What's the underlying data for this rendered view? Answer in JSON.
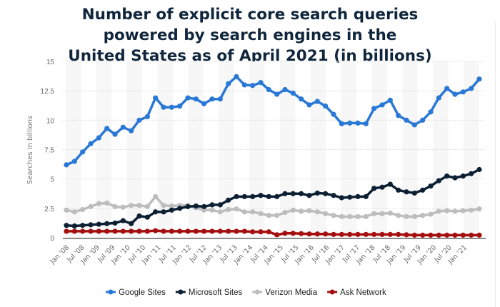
{
  "chart_data": {
    "type": "line",
    "title": "Number of explicit core search queries powered by search engines in the United States as of April 2021 (in billions)",
    "title_lines": [
      "Number of explicit core search queries",
      "powered by search engines in the",
      "United States as of April 2021 (in billions)"
    ],
    "xlabel": "",
    "ylabel": "Searches in billions",
    "ylim": [
      0,
      15
    ],
    "yticks": [
      "0",
      "2.5",
      "5",
      "7.5",
      "10",
      "12.5",
      "15"
    ],
    "ytick_values": [
      0,
      2.5,
      5,
      7.5,
      10,
      12.5,
      15
    ],
    "xtick_labels": [
      "Jan '08",
      "Jul '08",
      "Jan '09",
      "Jul '09",
      "Jan '10",
      "Jul '10",
      "Jan '11",
      "Jul '11",
      "Jan '12",
      "Jul '12",
      "Jan '13",
      "Jul '13",
      "Jan '14",
      "Jul '14",
      "Jan '15",
      "Jul '15",
      "Jan '16",
      "Jul '16",
      "Jan '17",
      "Jul '17",
      "Jan '18",
      "Jul '18",
      "Jan '19",
      "Jul '19",
      "Jan '20",
      "Jul '20",
      "Jan '21"
    ],
    "grid": true,
    "legend_position": "bottom",
    "series": [
      {
        "name": "Google Sites",
        "color": "#2a78d6",
        "values": [
          6.2,
          6.5,
          7.3,
          8.0,
          8.5,
          9.3,
          8.8,
          9.4,
          9.1,
          10.0,
          10.3,
          11.9,
          11.1,
          11.1,
          11.2,
          11.9,
          11.8,
          11.4,
          11.8,
          11.8,
          13.1,
          13.7,
          13.0,
          12.95,
          13.2,
          12.6,
          12.2,
          12.6,
          12.3,
          11.8,
          11.3,
          11.6,
          11.2,
          10.5,
          9.7,
          9.75,
          9.75,
          9.7,
          11.0,
          11.3,
          11.7,
          10.4,
          10.0,
          9.6,
          10.0,
          10.7,
          11.9,
          12.7,
          12.2,
          12.4,
          12.7,
          13.5
        ]
      },
      {
        "name": "Microsoft Sites",
        "color": "#0c1f33",
        "values": [
          1.05,
          1.0,
          1.05,
          1.1,
          1.15,
          1.2,
          1.25,
          1.45,
          1.2,
          1.85,
          1.75,
          2.2,
          2.2,
          2.35,
          2.5,
          2.65,
          2.7,
          2.65,
          2.8,
          2.8,
          3.2,
          3.5,
          3.5,
          3.5,
          3.6,
          3.5,
          3.5,
          3.75,
          3.75,
          3.75,
          3.6,
          3.8,
          3.75,
          3.6,
          3.4,
          3.45,
          3.5,
          3.5,
          4.2,
          4.3,
          4.55,
          4.05,
          3.9,
          3.8,
          4.05,
          4.4,
          4.85,
          5.25,
          5.1,
          5.25,
          5.45,
          5.8
        ]
      },
      {
        "name": "Verizon Media",
        "color": "#bdbdbd",
        "values": [
          2.35,
          2.2,
          2.4,
          2.65,
          2.9,
          2.95,
          2.65,
          2.6,
          2.75,
          2.75,
          2.65,
          3.5,
          2.75,
          2.7,
          2.75,
          2.75,
          2.55,
          2.35,
          2.35,
          2.2,
          2.4,
          2.45,
          2.2,
          2.2,
          2.05,
          1.9,
          1.9,
          2.15,
          2.35,
          2.25,
          2.3,
          2.2,
          2.05,
          1.9,
          1.8,
          1.8,
          1.8,
          1.8,
          2.05,
          2.05,
          2.1,
          1.9,
          1.8,
          1.8,
          1.9,
          2.0,
          2.25,
          2.3,
          2.25,
          2.3,
          2.35,
          2.45
        ]
      },
      {
        "name": "Ask Network",
        "color": "#a50f0f",
        "values": [
          0.55,
          0.55,
          0.55,
          0.55,
          0.55,
          0.55,
          0.55,
          0.55,
          0.55,
          0.55,
          0.55,
          0.6,
          0.55,
          0.55,
          0.55,
          0.55,
          0.55,
          0.55,
          0.55,
          0.55,
          0.55,
          0.55,
          0.55,
          0.5,
          0.5,
          0.5,
          0.25,
          0.38,
          0.38,
          0.35,
          0.32,
          0.32,
          0.32,
          0.28,
          0.28,
          0.28,
          0.28,
          0.28,
          0.28,
          0.28,
          0.28,
          0.28,
          0.25,
          0.22,
          0.22,
          0.22,
          0.22,
          0.22,
          0.22,
          0.22,
          0.22,
          0.22
        ]
      }
    ]
  }
}
